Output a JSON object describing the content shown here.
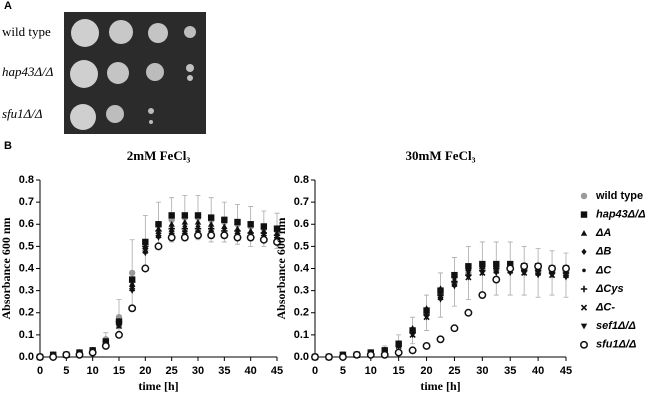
{
  "panel_a": {
    "label": "A",
    "rows": [
      "wild type",
      "hap43Δ/Δ",
      "sfu1Δ/Δ"
    ]
  },
  "panel_b_label": "B",
  "chart_data": [
    {
      "type": "scatter",
      "title": "2mM FeCl₃",
      "x_label": "time [h]",
      "y_label": "Absorbance 600 nm",
      "x": [
        0,
        2.5,
        5,
        7.5,
        10,
        12.5,
        15,
        17.5,
        20,
        22.5,
        25,
        27.5,
        30,
        32.5,
        35,
        37.5,
        40,
        42.5,
        45
      ],
      "xlim": [
        0,
        45
      ],
      "xticks": [
        0,
        5,
        10,
        15,
        20,
        25,
        30,
        35,
        40,
        45
      ],
      "ylim": [
        0,
        0.8
      ],
      "yticks": [
        {
          "value": 0,
          "label": "0.0"
        },
        0.1,
        0.2,
        0.3,
        0.4,
        0.5,
        0.6,
        0.7,
        0.8
      ],
      "series": [
        {
          "marker": "circle",
          "color": "#999999",
          "values": [
            0,
            0.01,
            0.01,
            0.02,
            0.03,
            0.08,
            0.18,
            0.38,
            0.52,
            0.6,
            0.62,
            0.63,
            0.63,
            0.62,
            0.61,
            0.6,
            0.59,
            0.58,
            0.57
          ],
          "errors": [
            0,
            0.005,
            0.005,
            0.01,
            0.01,
            0.03,
            0.08,
            0.15,
            0.12,
            0.1,
            0.1,
            0.1,
            0.1,
            0.1,
            0.09,
            0.09,
            0.09,
            0.08,
            0.08
          ]
        },
        {
          "marker": "square",
          "color": "#111111",
          "values": [
            0,
            0.01,
            0.01,
            0.02,
            0.03,
            0.07,
            0.16,
            0.35,
            0.52,
            0.6,
            0.64,
            0.64,
            0.64,
            0.63,
            0.62,
            0.61,
            0.6,
            0.59,
            0.58
          ]
        },
        {
          "marker": "triangle-up",
          "color": "#111111",
          "values": [
            0,
            0.01,
            0.01,
            0.02,
            0.03,
            0.07,
            0.15,
            0.33,
            0.5,
            0.58,
            0.6,
            0.61,
            0.61,
            0.6,
            0.59,
            0.58,
            0.57,
            0.57,
            0.56
          ]
        },
        {
          "marker": "diamond",
          "color": "#111111",
          "values": [
            0,
            0.01,
            0.01,
            0.02,
            0.03,
            0.07,
            0.15,
            0.32,
            0.49,
            0.56,
            0.58,
            0.59,
            0.59,
            0.58,
            0.58,
            0.57,
            0.56,
            0.56,
            0.55
          ]
        },
        {
          "marker": "dot",
          "color": "#111111",
          "values": [
            0,
            0.01,
            0.01,
            0.02,
            0.03,
            0.07,
            0.15,
            0.33,
            0.5,
            0.56,
            0.57,
            0.57,
            0.57,
            0.57,
            0.56,
            0.56,
            0.55,
            0.55,
            0.54
          ]
        },
        {
          "marker": "plus",
          "color": "#111111",
          "values": [
            0,
            0.01,
            0.01,
            0.02,
            0.03,
            0.07,
            0.16,
            0.34,
            0.5,
            0.57,
            0.58,
            0.58,
            0.58,
            0.58,
            0.57,
            0.57,
            0.56,
            0.56,
            0.55
          ]
        },
        {
          "marker": "cross",
          "color": "#111111",
          "values": [
            0,
            0.01,
            0.01,
            0.02,
            0.03,
            0.06,
            0.14,
            0.31,
            0.48,
            0.55,
            0.56,
            0.56,
            0.56,
            0.56,
            0.55,
            0.55,
            0.54,
            0.54,
            0.53
          ]
        },
        {
          "marker": "triangle-down",
          "color": "#111111",
          "values": [
            0,
            0.01,
            0.01,
            0.02,
            0.03,
            0.06,
            0.14,
            0.3,
            0.47,
            0.54,
            0.55,
            0.55,
            0.55,
            0.55,
            0.55,
            0.54,
            0.54,
            0.53,
            0.53
          ]
        },
        {
          "marker": "open-circle",
          "color": "#111111",
          "values": [
            0,
            0,
            0.01,
            0.01,
            0.02,
            0.05,
            0.1,
            0.22,
            0.4,
            0.5,
            0.54,
            0.54,
            0.55,
            0.55,
            0.55,
            0.54,
            0.54,
            0.53,
            0.52
          ]
        }
      ]
    },
    {
      "type": "scatter",
      "title": "30mM FeCl₃",
      "x_label": "time [h]",
      "y_label": "Absorbance 600 nm",
      "x": [
        0,
        2.5,
        5,
        7.5,
        10,
        12.5,
        15,
        17.5,
        20,
        22.5,
        25,
        27.5,
        30,
        32.5,
        35,
        37.5,
        40,
        42.5,
        45
      ],
      "xlim": [
        0,
        45
      ],
      "xticks": [
        0,
        5,
        10,
        15,
        20,
        25,
        30,
        35,
        40,
        45
      ],
      "ylim": [
        0,
        0.8
      ],
      "yticks": [
        {
          "value": 0,
          "label": "0.0"
        },
        0.1,
        0.2,
        0.3,
        0.4,
        0.5,
        0.6,
        0.7,
        0.8
      ],
      "series": [
        {
          "name": "wild type",
          "marker": "circle",
          "color": "#999999",
          "values": [
            0,
            0,
            0.01,
            0.01,
            0.02,
            0.03,
            0.06,
            0.12,
            0.2,
            0.28,
            0.34,
            0.38,
            0.4,
            0.4,
            0.4,
            0.39,
            0.38,
            0.38,
            0.37
          ],
          "errors": [
            0,
            0,
            0,
            0.005,
            0.01,
            0.02,
            0.04,
            0.06,
            0.08,
            0.1,
            0.11,
            0.12,
            0.12,
            0.12,
            0.12,
            0.11,
            0.11,
            0.1,
            0.1
          ]
        },
        {
          "name": "hap43Δ/Δ",
          "marker": "square",
          "color": "#111111",
          "values": [
            0,
            0,
            0.01,
            0.01,
            0.02,
            0.03,
            0.06,
            0.12,
            0.21,
            0.3,
            0.37,
            0.41,
            0.42,
            0.42,
            0.42,
            0.41,
            0.41,
            0.4,
            0.4
          ]
        },
        {
          "name": "ΔA",
          "marker": "triangle-up",
          "color": "#111111",
          "values": [
            0,
            0,
            0.01,
            0.01,
            0.02,
            0.03,
            0.06,
            0.13,
            0.22,
            0.31,
            0.37,
            0.4,
            0.41,
            0.41,
            0.41,
            0.4,
            0.4,
            0.39,
            0.39
          ]
        },
        {
          "name": "ΔB",
          "marker": "diamond",
          "color": "#111111",
          "values": [
            0,
            0,
            0.01,
            0.01,
            0.02,
            0.03,
            0.06,
            0.12,
            0.21,
            0.3,
            0.36,
            0.39,
            0.41,
            0.42,
            0.42,
            0.41,
            0.41,
            0.4,
            0.4
          ]
        },
        {
          "name": "ΔC",
          "marker": "dot",
          "color": "#111111",
          "values": [
            0,
            0,
            0.01,
            0.01,
            0.02,
            0.03,
            0.05,
            0.11,
            0.2,
            0.29,
            0.35,
            0.38,
            0.4,
            0.4,
            0.4,
            0.39,
            0.39,
            0.38,
            0.38
          ]
        },
        {
          "name": "ΔCys",
          "marker": "plus",
          "color": "#111111",
          "values": [
            0,
            0,
            0.01,
            0.01,
            0.02,
            0.03,
            0.05,
            0.11,
            0.19,
            0.28,
            0.34,
            0.37,
            0.39,
            0.4,
            0.4,
            0.39,
            0.39,
            0.38,
            0.38
          ]
        },
        {
          "name": "ΔC-",
          "marker": "cross",
          "color": "#111111",
          "values": [
            0,
            0,
            0.01,
            0.01,
            0.02,
            0.03,
            0.05,
            0.1,
            0.18,
            0.27,
            0.33,
            0.36,
            0.38,
            0.39,
            0.39,
            0.38,
            0.38,
            0.37,
            0.37
          ]
        },
        {
          "name": "sef1Δ/Δ",
          "marker": "triangle-down",
          "color": "#111111",
          "values": [
            0,
            0,
            0.01,
            0.01,
            0.02,
            0.03,
            0.05,
            0.1,
            0.18,
            0.26,
            0.32,
            0.36,
            0.38,
            0.38,
            0.38,
            0.38,
            0.37,
            0.37,
            0.36
          ]
        },
        {
          "name": "sfu1Δ/Δ",
          "marker": "open-circle",
          "color": "#111111",
          "values": [
            0,
            0,
            0,
            0.01,
            0.01,
            0.01,
            0.02,
            0.03,
            0.05,
            0.08,
            0.13,
            0.2,
            0.28,
            0.35,
            0.4,
            0.41,
            0.41,
            0.4,
            0.4
          ]
        }
      ]
    }
  ]
}
